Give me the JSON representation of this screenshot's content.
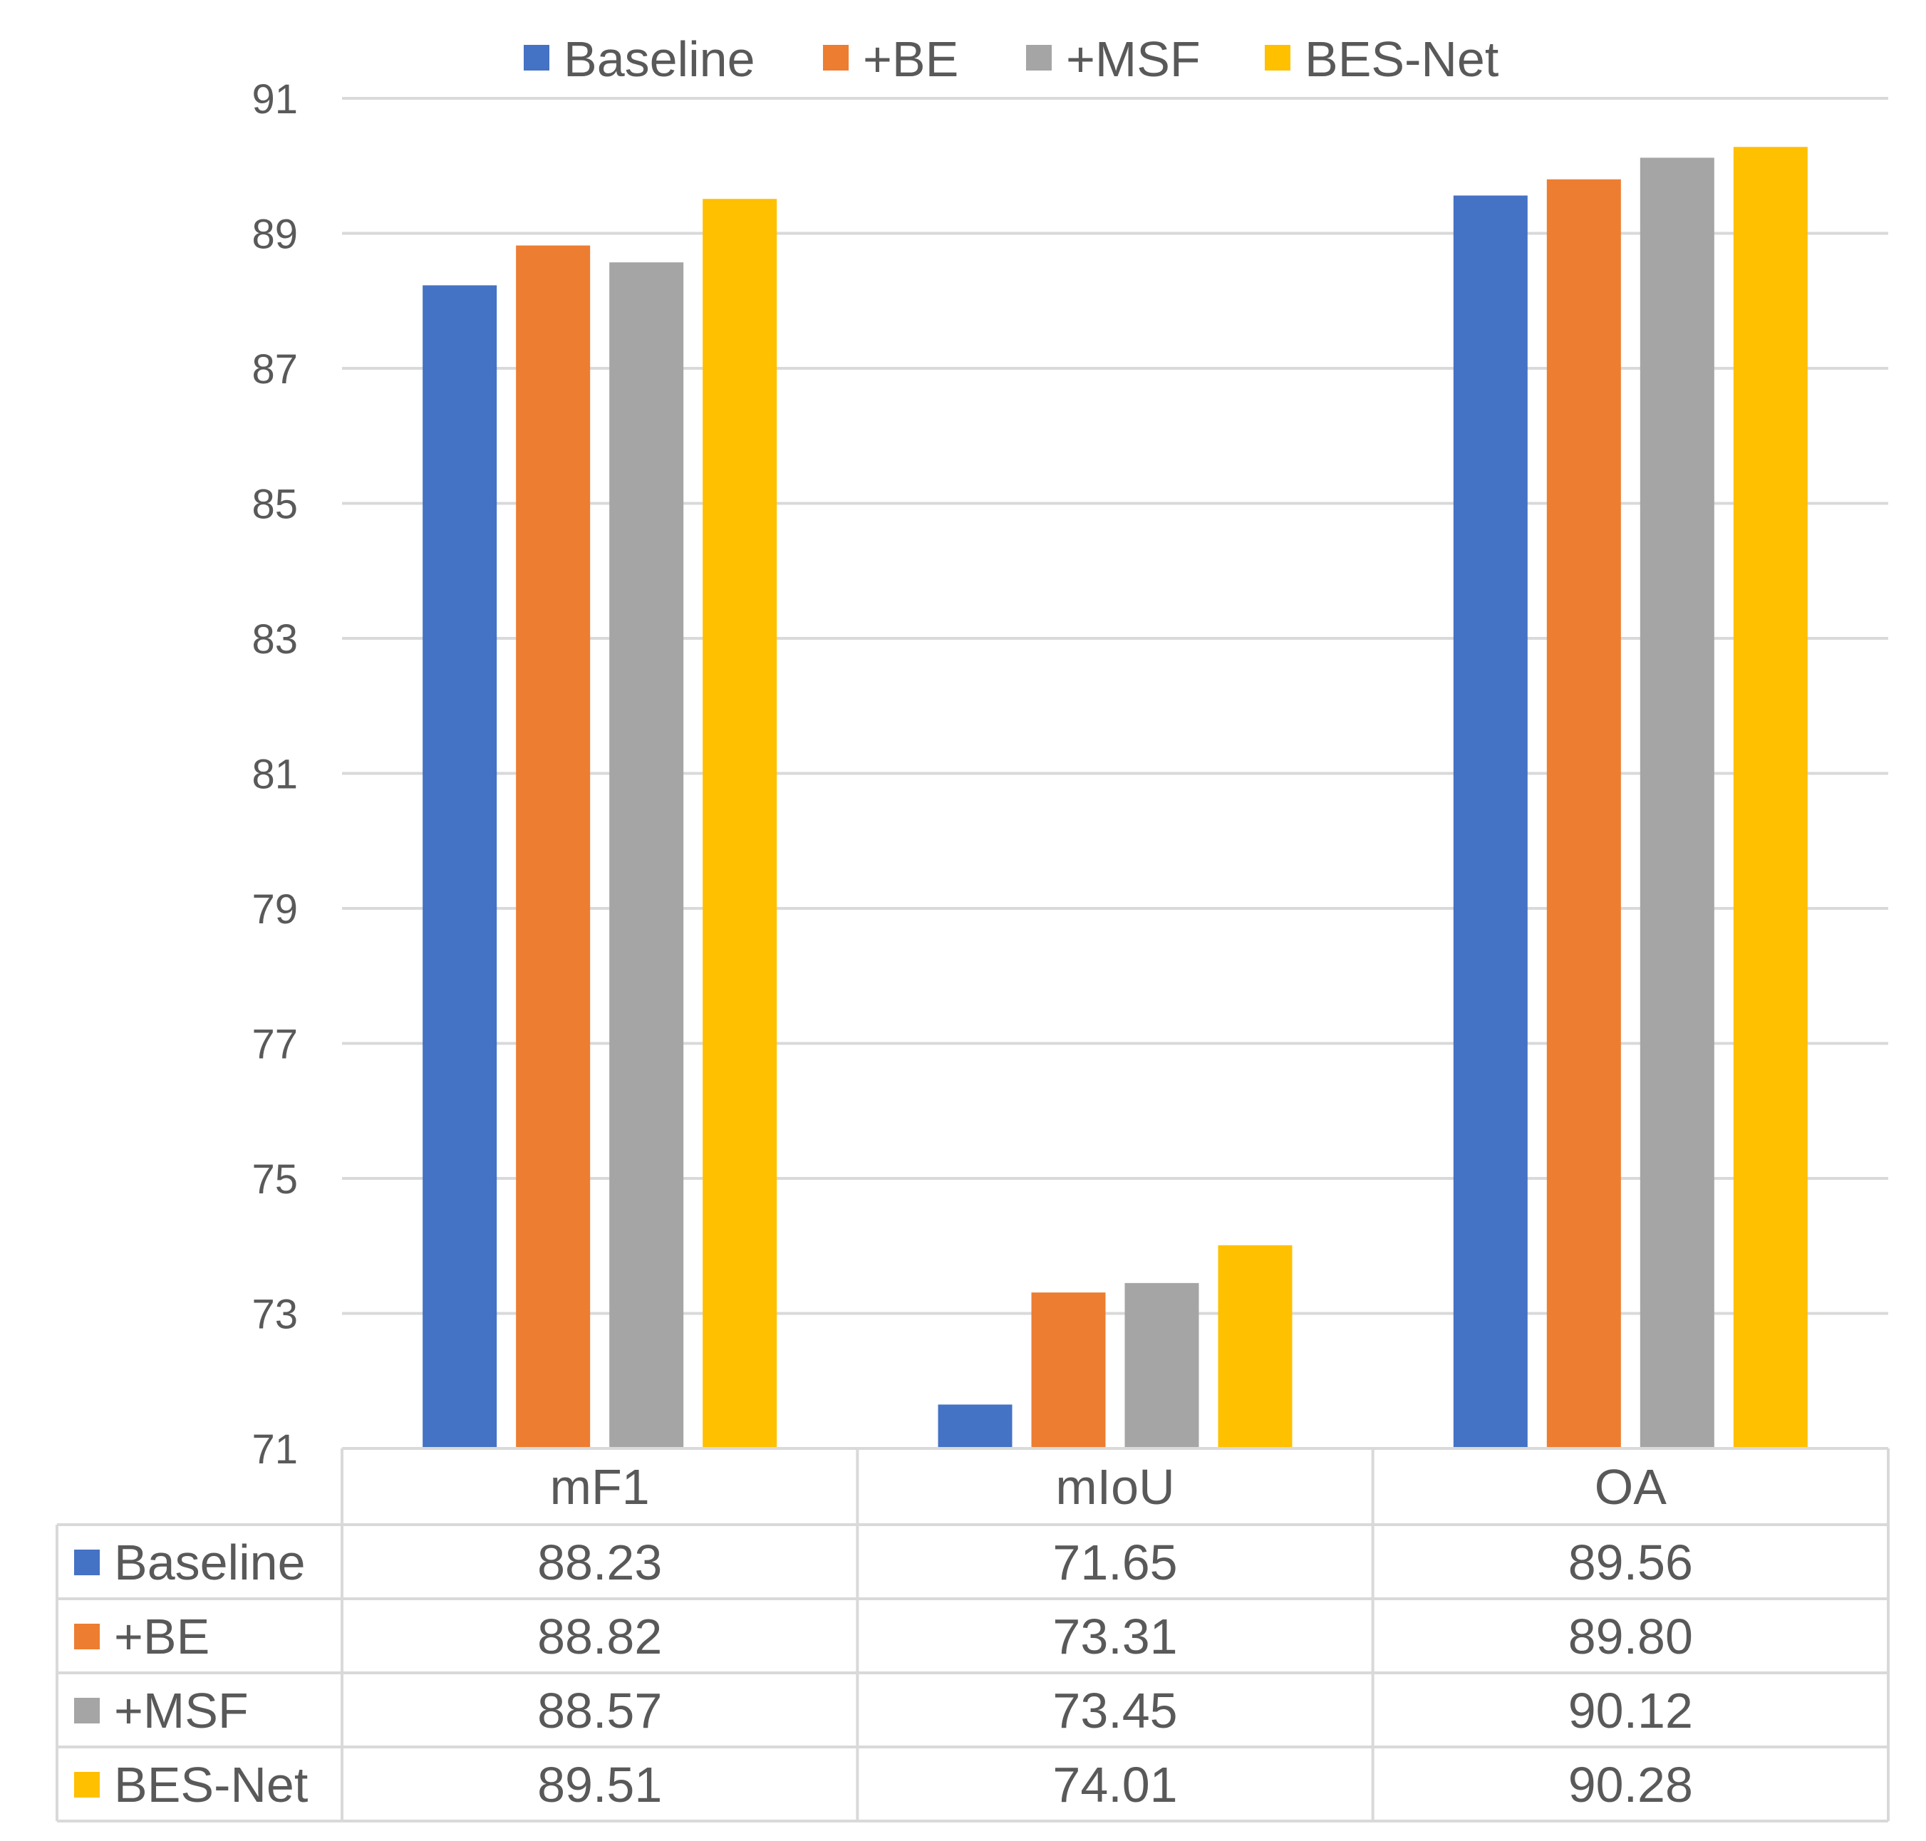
{
  "chart_data": {
    "type": "bar",
    "title": "",
    "xlabel": "",
    "ylabel": "",
    "categories": [
      "mF1",
      "mIoU",
      "OA"
    ],
    "series": [
      {
        "name": "Baseline",
        "color": "#4472c4",
        "values": [
          88.23,
          71.65,
          89.56
        ],
        "labels": [
          "88.23",
          "71.65",
          "89.56"
        ]
      },
      {
        "name": "+BE",
        "color": "#ed7d31",
        "values": [
          88.82,
          73.31,
          89.8
        ],
        "labels": [
          "88.82",
          "73.31",
          "89.80"
        ]
      },
      {
        "name": "+MSF",
        "color": "#a5a5a5",
        "values": [
          88.57,
          73.45,
          90.12
        ],
        "labels": [
          "88.57",
          "73.45",
          "90.12"
        ]
      },
      {
        "name": "BES-Net",
        "color": "#ffc000",
        "values": [
          89.51,
          74.01,
          90.28
        ],
        "labels": [
          "89.51",
          "74.01",
          "90.28"
        ]
      }
    ],
    "ylim": [
      71,
      91
    ],
    "yticks": [
      "71",
      "73",
      "75",
      "77",
      "79",
      "81",
      "83",
      "85",
      "87",
      "89",
      "91"
    ],
    "grid": true,
    "legend": "top-center",
    "data_table": true
  }
}
